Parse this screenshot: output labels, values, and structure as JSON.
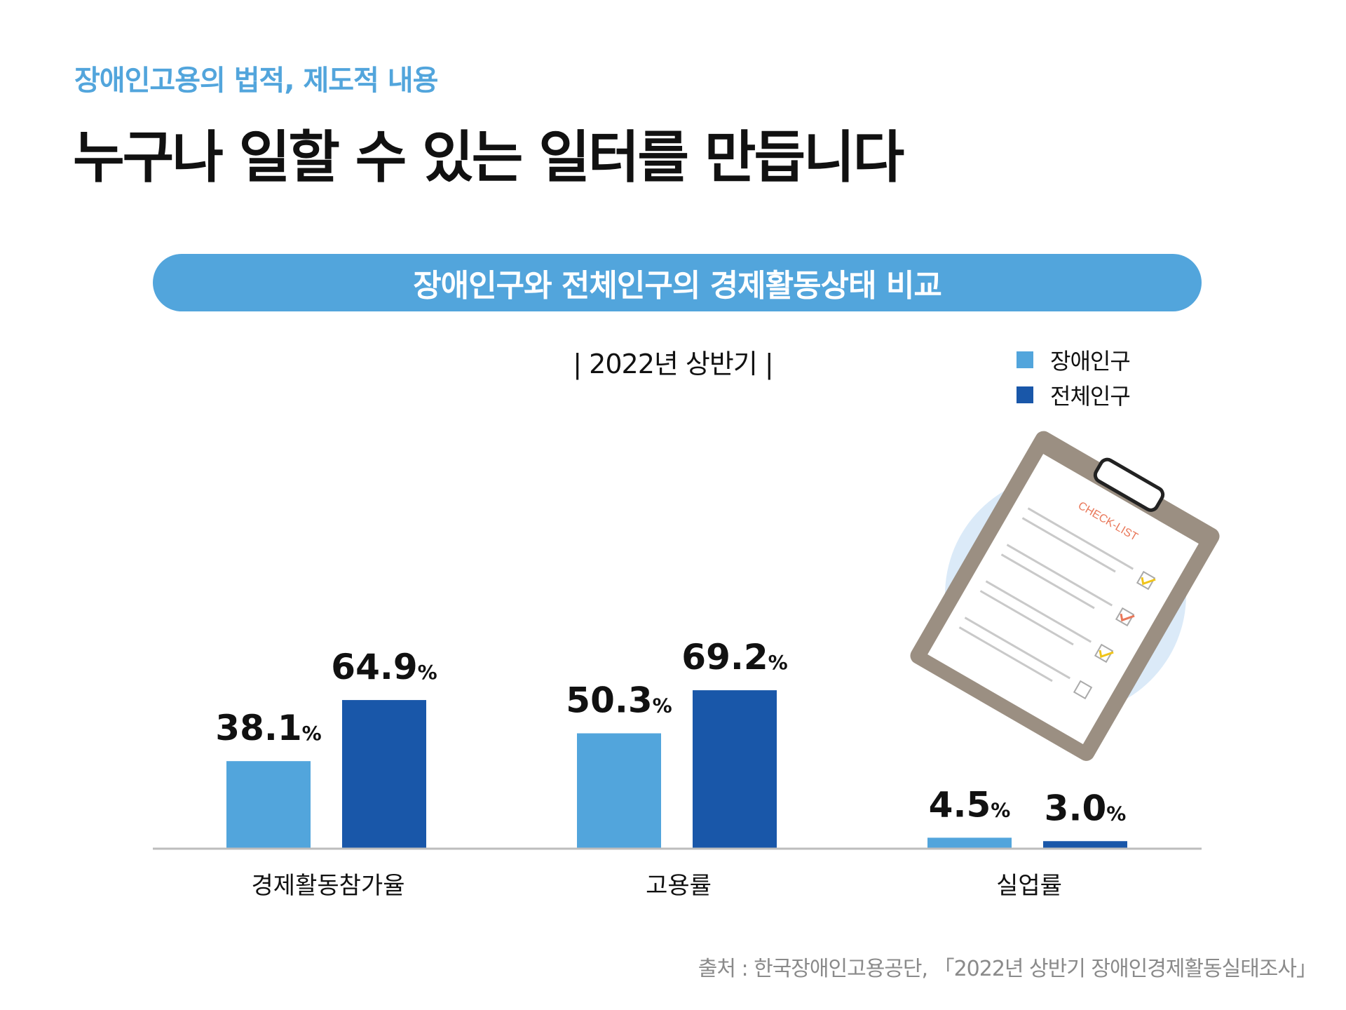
{
  "header": {
    "subtitle": "장애인고용의 법적, 제도적 내용",
    "title": "누구나 일할 수 있는 일터를 만듭니다"
  },
  "banner": {
    "text": "장애인구와 전체인구의 경제활동상태 비교"
  },
  "period": {
    "text": "| 2022년 상반기 |"
  },
  "colors": {
    "accent": "#52a5dc",
    "disabled": "#52a5dc",
    "total": "#1957a9",
    "axis": "#bdbdbd",
    "illustration_bg": "#dbeaf8"
  },
  "illustration": {
    "icon": "clipboard-checklist-icon",
    "text": "CHECK-LIST"
  },
  "chart_data": {
    "type": "bar",
    "categories": [
      "경제활동참가율",
      "고용률",
      "실업률"
    ],
    "series": [
      {
        "name": "장애인구",
        "values": [
          38.1,
          50.3,
          4.5
        ],
        "labels": [
          "38.1",
          "50.3",
          "4.5"
        ],
        "color": "#52a5dc"
      },
      {
        "name": "전체인구",
        "values": [
          64.9,
          69.2,
          3.0
        ],
        "labels": [
          "64.9",
          "69.2",
          "3.0"
        ],
        "color": "#1957a9"
      }
    ],
    "unit": "%",
    "legend_position": "top-right",
    "grid": false
  },
  "source": {
    "text": "출처 : 한국장애인고용공단, 「2022년 상반기 장애인경제활동실태조사」"
  }
}
